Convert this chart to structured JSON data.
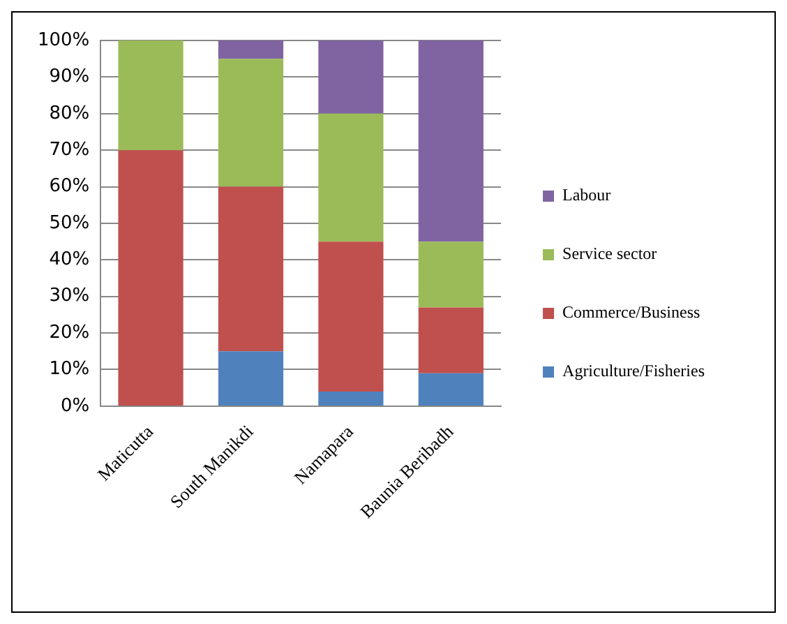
{
  "chart_data": {
    "type": "bar",
    "stacked": true,
    "categories": [
      "Maticutta",
      "South Manikdi",
      "Namapara",
      "Baunia Beribadh"
    ],
    "series": [
      {
        "name": "Agriculture/Fisheries",
        "color": "#4f81bd",
        "values": [
          0,
          15,
          4,
          9
        ]
      },
      {
        "name": "Commerce/Business",
        "color": "#c0504d",
        "values": [
          70,
          45,
          41,
          18
        ]
      },
      {
        "name": "Service sector",
        "color": "#9bbb59",
        "values": [
          30,
          35,
          35,
          18
        ]
      },
      {
        "name": "Labour",
        "color": "#8064a2",
        "values": [
          0,
          5,
          20,
          55
        ]
      }
    ],
    "ylim": [
      0,
      100
    ],
    "yticks": [
      {
        "value": 0,
        "label": "0%"
      },
      {
        "value": 10,
        "label": "10%"
      },
      {
        "value": 20,
        "label": "20%"
      },
      {
        "value": 30,
        "label": "30%"
      },
      {
        "value": 40,
        "label": "40%"
      },
      {
        "value": 50,
        "label": "50%"
      },
      {
        "value": 60,
        "label": "60%"
      },
      {
        "value": 70,
        "label": "70%"
      },
      {
        "value": 80,
        "label": "80%"
      },
      {
        "value": 90,
        "label": "90%"
      },
      {
        "value": 100,
        "label": "100%"
      }
    ],
    "grid": "y",
    "legend": "right"
  }
}
